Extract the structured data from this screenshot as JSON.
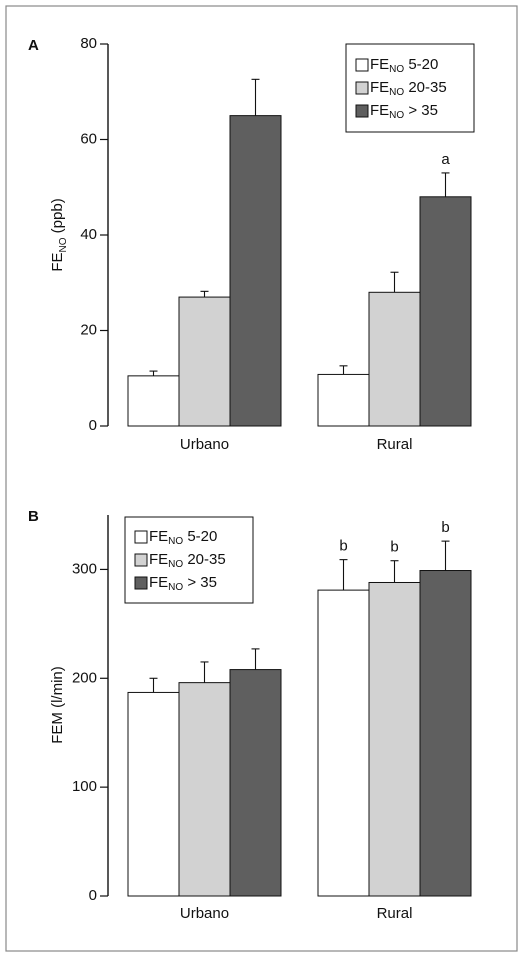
{
  "chart_data": [
    {
      "type": "bar",
      "panel": "A",
      "ylabel": "FE",
      "ylabel_sub": "NO",
      "ylabel_suffix": " (ppb)",
      "ylim": [
        0,
        80
      ],
      "yticks": [
        0,
        20,
        40,
        60,
        80
      ],
      "categories": [
        "Urbano",
        "Rural"
      ],
      "legend_position": "top-right",
      "series": [
        {
          "name": "FE",
          "name_sub": "NO",
          "name_suffix": " 5-20",
          "color": "#ffffff",
          "values": [
            10.5,
            10.8
          ],
          "errors": [
            1.0,
            1.8
          ],
          "annotations": [
            "",
            ""
          ]
        },
        {
          "name": "FE",
          "name_sub": "NO",
          "name_suffix": " 20-35",
          "color": "#d2d2d2",
          "values": [
            27,
            28
          ],
          "errors": [
            1.2,
            4.2
          ],
          "annotations": [
            "",
            ""
          ]
        },
        {
          "name": "FE",
          "name_sub": "NO",
          "name_suffix": " > 35",
          "color": "#5f5f5f",
          "values": [
            65,
            48
          ],
          "errors": [
            7.6,
            5.0
          ],
          "annotations": [
            "",
            "a"
          ]
        }
      ]
    },
    {
      "type": "bar",
      "panel": "B",
      "ylabel": "FEM (l/min)",
      "ylabel_sub": "",
      "ylabel_suffix": "",
      "ylim": [
        0,
        350
      ],
      "yticks": [
        0,
        100,
        200,
        300
      ],
      "categories": [
        "Urbano",
        "Rural"
      ],
      "legend_position": "top-left",
      "series": [
        {
          "name": "FE",
          "name_sub": "NO",
          "name_suffix": " 5-20",
          "color": "#ffffff",
          "values": [
            187,
            281
          ],
          "errors": [
            13,
            28
          ],
          "annotations": [
            "",
            "b"
          ]
        },
        {
          "name": "FE",
          "name_sub": "NO",
          "name_suffix": " 20-35",
          "color": "#d2d2d2",
          "values": [
            196,
            288
          ],
          "errors": [
            19,
            20
          ],
          "annotations": [
            "",
            "b"
          ]
        },
        {
          "name": "FE",
          "name_sub": "NO",
          "name_suffix": " > 35",
          "color": "#5f5f5f",
          "values": [
            208,
            299
          ],
          "errors": [
            19,
            27
          ],
          "annotations": [
            "",
            "b"
          ]
        }
      ]
    }
  ]
}
